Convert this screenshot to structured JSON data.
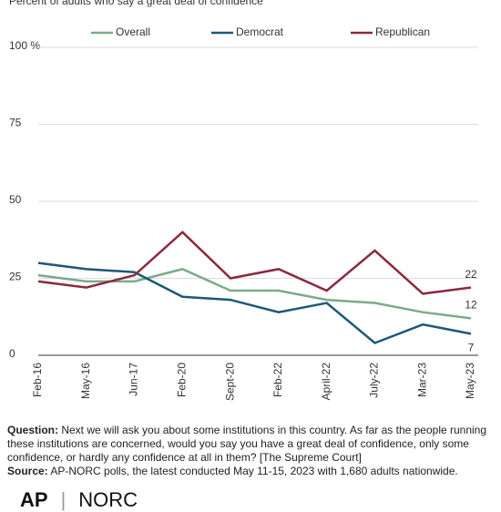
{
  "chart_data": {
    "type": "line",
    "subtitle": "Percent of adults who say a great deal of confidence",
    "categories": [
      "Feb-16",
      "May-16",
      "Jun-17",
      "Feb-20",
      "Sept-20",
      "Feb-22",
      "April-22",
      "July-22",
      "Mar-23",
      "May-23"
    ],
    "series": [
      {
        "name": "Overall",
        "color": "#7aab8a",
        "values": [
          26,
          24,
          24,
          28,
          21,
          21,
          18,
          17,
          14,
          12
        ]
      },
      {
        "name": "Democrat",
        "color": "#1d5877",
        "values": [
          30,
          28,
          27,
          19,
          18,
          14,
          17,
          4,
          10,
          7
        ]
      },
      {
        "name": "Republican",
        "color": "#8a2a3d",
        "values": [
          24,
          22,
          26,
          40,
          25,
          28,
          21,
          34,
          20,
          22
        ]
      }
    ],
    "ylim": [
      0,
      100
    ],
    "yticks": [
      0,
      25,
      50,
      75,
      {
        "value": 100,
        "label": "100 %"
      }
    ],
    "grid": true
  },
  "footer": {
    "question_label": "Question:",
    "question": "Next we will ask you about some institutions in this country. As far as the people running these institutions are concerned, would you say you have a great deal of confidence, only some confidence, or hardly any confidence at all in them? [The Supreme Court]",
    "source_label": "Source:",
    "source": "AP-NORC polls, the latest conducted May 11-15, 2023 with 1,680 adults nationwide.",
    "logo_ap": "AP",
    "logo_norc": "NORC"
  }
}
